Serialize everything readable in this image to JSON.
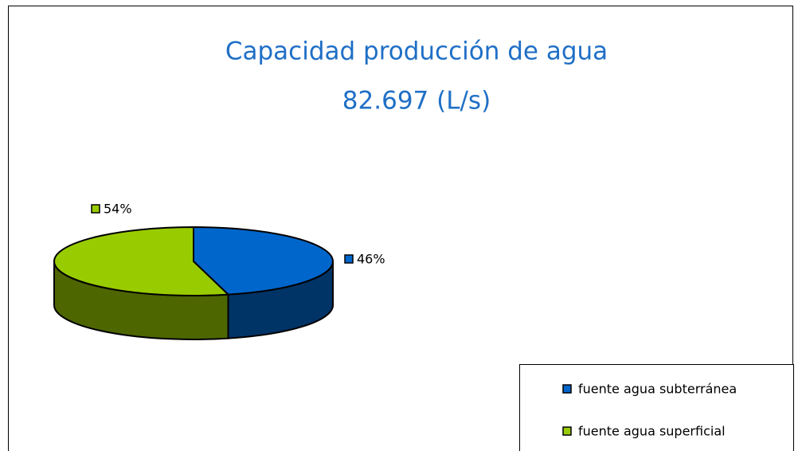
{
  "chart_data": {
    "type": "pie",
    "title": "Capacidad producción de agua",
    "subtitle": "82.697 (L/s)",
    "categories": [
      "fuente agua subterránea",
      "fuente agua superficial"
    ],
    "values": [
      46,
      54
    ],
    "value_labels": [
      "46%",
      "54%"
    ],
    "colors": [
      "#0066cc",
      "#99cc00"
    ],
    "legend": "bottom-right"
  }
}
